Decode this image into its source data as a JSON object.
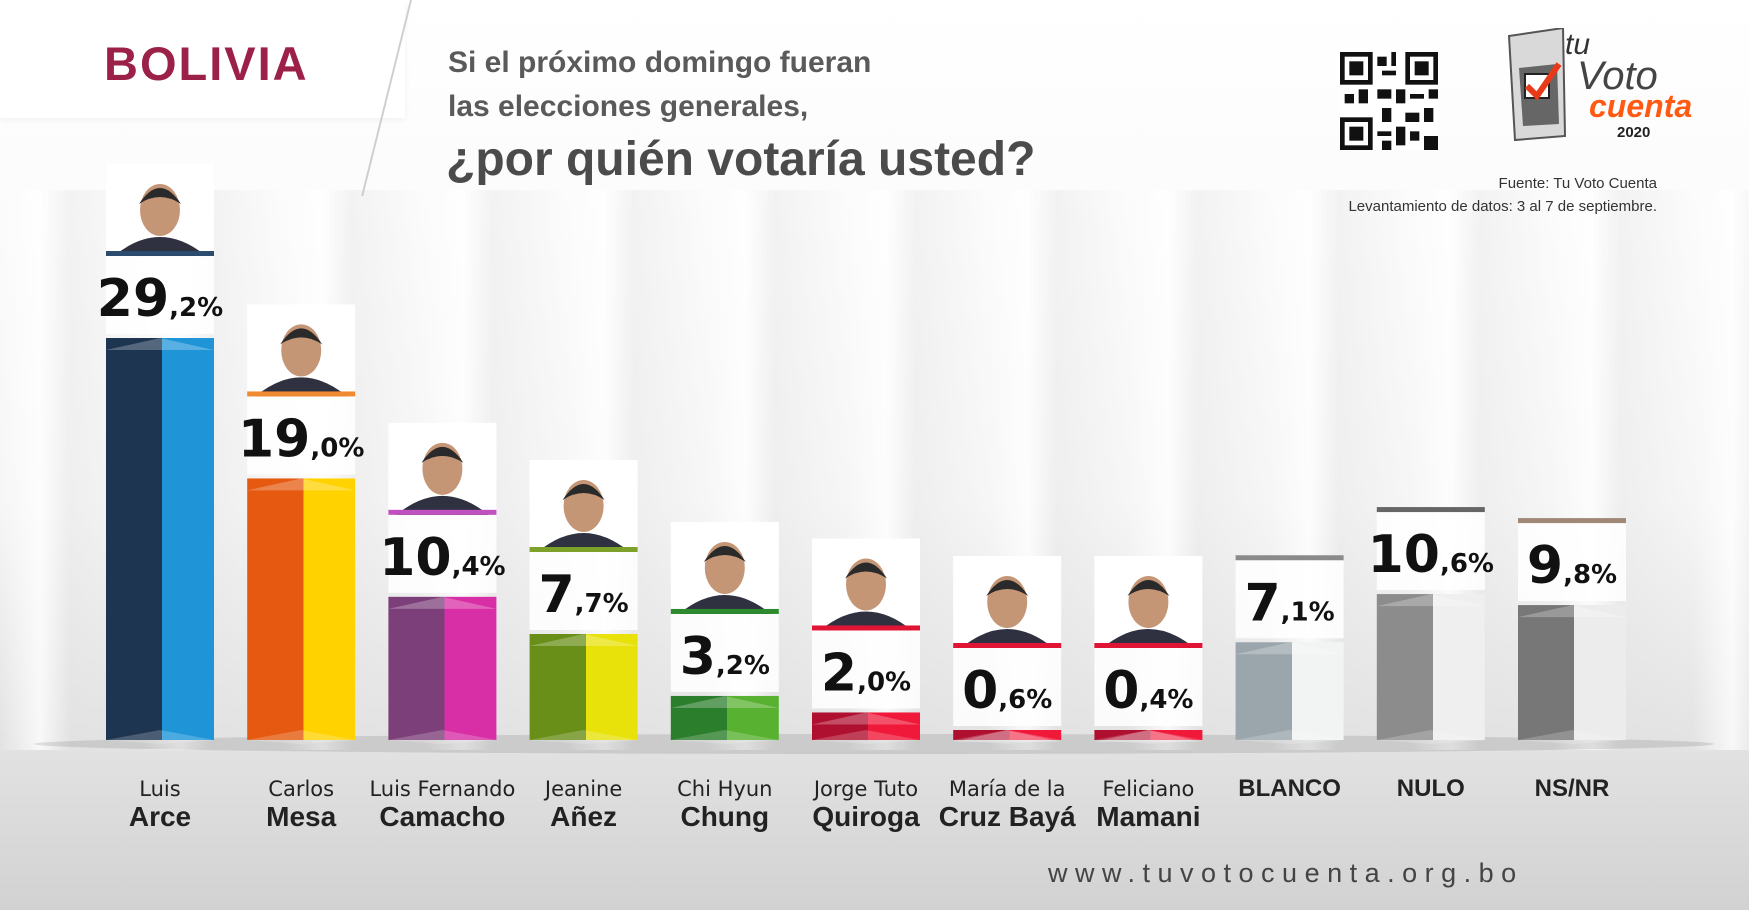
{
  "header": {
    "country": "BOLIVIA",
    "question_line1": "Si el próximo domingo fueran",
    "question_line2": "las elecciones generales,",
    "question_line3": "¿por quién votaría usted?"
  },
  "logo": {
    "text_tu": "tu",
    "text_voto": "Voto",
    "text_cuenta": "cuenta",
    "year": "2020",
    "icon": "ballot-box-logo-icon"
  },
  "qr_icon": "qr-code-icon",
  "source": {
    "line1": "Fuente: Tu Voto Cuenta",
    "line2": "Levantamiento de datos: 3 al 7 de septiembre."
  },
  "footer": {
    "url": "www.tuvotocuenta.org.bo"
  },
  "chart_data": {
    "type": "bar",
    "categories": [
      "Luis Arce",
      "Carlos Mesa",
      "Luis Fernando Camacho",
      "Jeanine Añez",
      "Chi Hyun Chung",
      "Jorge Tuto Quiroga",
      "María de la Cruz Bayá",
      "Feliciano Mamani",
      "BLANCO",
      "NULO",
      "NS/NR"
    ],
    "values": [
      29.2,
      19.0,
      10.4,
      7.7,
      3.2,
      2.0,
      0.6,
      0.4,
      7.1,
      10.6,
      9.8
    ],
    "value_labels": [
      {
        "big": "29",
        "small": ",2%"
      },
      {
        "big": "19",
        "small": ",0%"
      },
      {
        "big": "10",
        "small": ",4%"
      },
      {
        "big": "7",
        "small": ",7%"
      },
      {
        "big": "3",
        "small": ",2%"
      },
      {
        "big": "2",
        "small": ",0%"
      },
      {
        "big": "0",
        "small": ",6%"
      },
      {
        "big": "0",
        "small": ",4%"
      },
      {
        "big": "7",
        "small": ",1%"
      },
      {
        "big": "10",
        "small": ",6%"
      },
      {
        "big": "9",
        "small": ",8%"
      }
    ],
    "labels": [
      {
        "line1": "Luis",
        "line2": "Arce"
      },
      {
        "line1": "Carlos",
        "line2": "Mesa"
      },
      {
        "line1": "Luis Fernando",
        "line2": "Camacho"
      },
      {
        "line1": "Jeanine",
        "line2": "Añez"
      },
      {
        "line1": "Chi Hyun",
        "line2": "Chung"
      },
      {
        "line1": "Jorge Tuto",
        "line2": "Quiroga"
      },
      {
        "line1": "María de la",
        "line2": "Cruz Bayá"
      },
      {
        "line1": "Feliciano",
        "line2": "Mamani"
      },
      {
        "line1": "",
        "line2": "BLANCO"
      },
      {
        "line1": "",
        "line2": "NULO"
      },
      {
        "line1": "",
        "line2": "NS/NR"
      }
    ],
    "colors": [
      [
        "#1d3550",
        "#1f95d8"
      ],
      [
        "#e55a10",
        "#ffd200"
      ],
      [
        "#7c3f7a",
        "#d92fa6"
      ],
      [
        "#6a8f18",
        "#e8e20a"
      ],
      [
        "#2b7f2c",
        "#58b130"
      ],
      [
        "#b01030",
        "#f0193a"
      ],
      [
        "#b01030",
        "#f0193a"
      ],
      [
        "#b01030",
        "#f0193a"
      ],
      [
        "#9aa6ab",
        "#f2f4f4"
      ],
      [
        "#8c8c8c",
        "#efefef"
      ],
      [
        "#777777",
        "#ececec"
      ]
    ],
    "photo_stripe_colors": [
      "#2b4b6f",
      "#f08a30",
      "#c050c0",
      "#7ea12a",
      "#2e8a2f",
      "#e01535",
      "#e01535",
      "#e01535",
      "#8a8a8a",
      "#666666",
      "#a08878"
    ],
    "has_photo": [
      true,
      true,
      true,
      true,
      true,
      true,
      true,
      true,
      false,
      false,
      false
    ],
    "ylim": [
      0,
      30
    ]
  }
}
